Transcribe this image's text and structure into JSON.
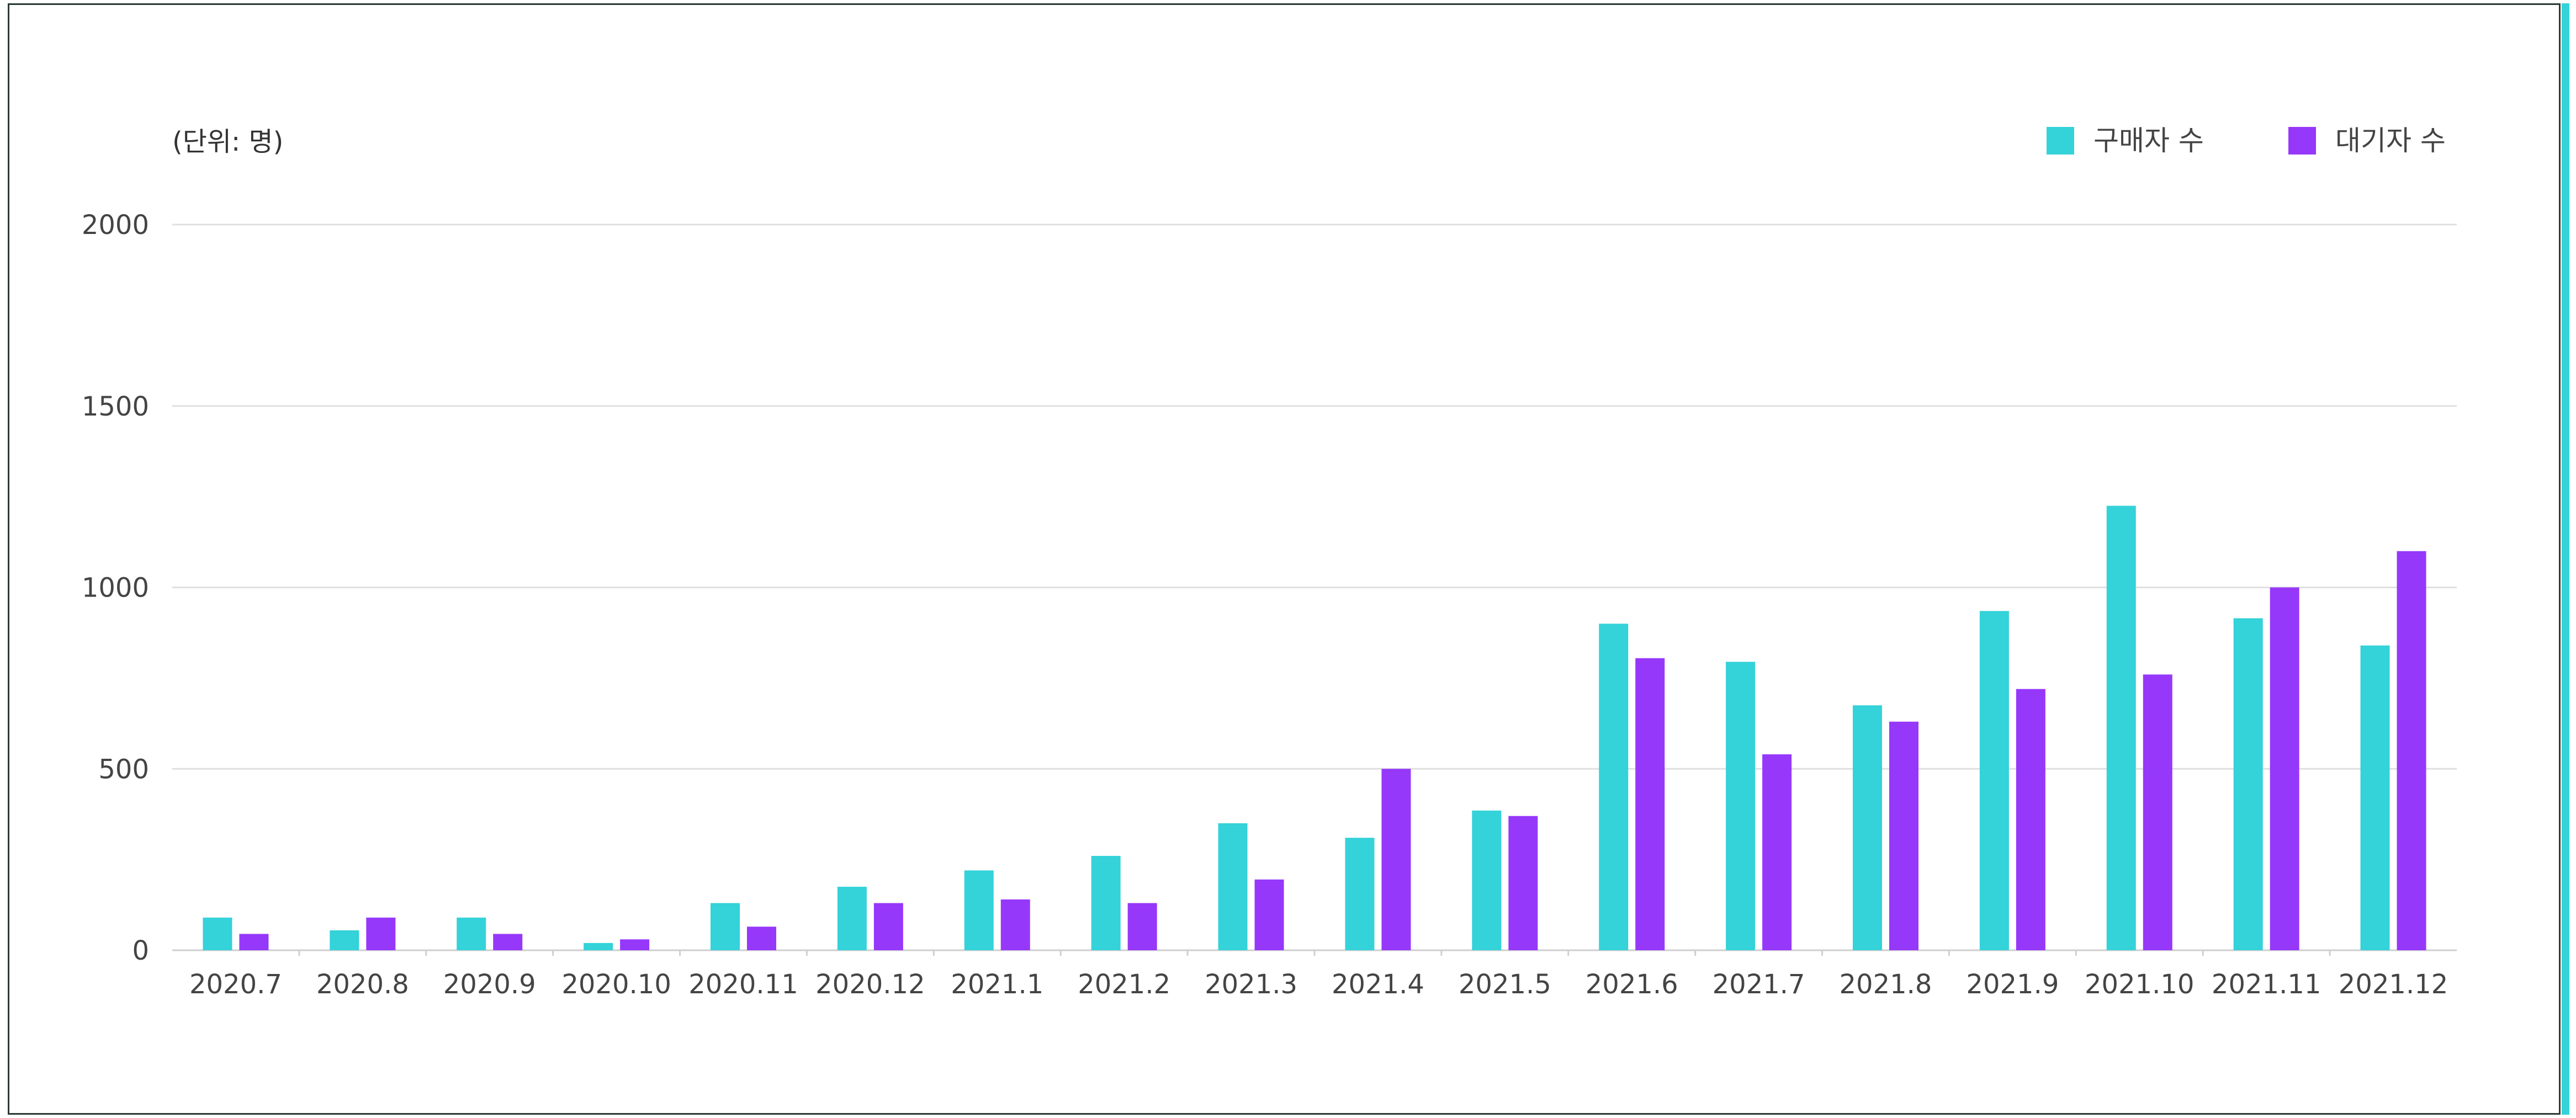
{
  "chart_data": {
    "type": "bar",
    "unit_label": "(단위: 명)",
    "title": "",
    "xlabel": "",
    "ylabel": "",
    "categories": [
      "2020.7",
      "2020.8",
      "2020.9",
      "2020.10",
      "2020.11",
      "2020.12",
      "2021.1",
      "2021.2",
      "2021.3",
      "2021.4",
      "2021.5",
      "2021.6",
      "2021.7",
      "2021.8",
      "2021.9",
      "2021.10",
      "2021.11",
      "2021.12"
    ],
    "series": [
      {
        "name": "구매자 수",
        "color": "#34d2d9",
        "values": [
          90,
          55,
          90,
          20,
          130,
          175,
          220,
          260,
          350,
          310,
          385,
          900,
          795,
          675,
          935,
          1225,
          915,
          840
        ]
      },
      {
        "name": "대기자 수",
        "color": "#9638fa",
        "values": [
          45,
          90,
          45,
          30,
          65,
          130,
          140,
          130,
          195,
          500,
          370,
          805,
          540,
          630,
          720,
          760,
          1000,
          1100
        ]
      }
    ],
    "ylim": [
      0,
      2000
    ],
    "yticks": [
      0,
      500,
      1000,
      1500,
      2000
    ],
    "grid": true,
    "legend_position": "top-right"
  }
}
